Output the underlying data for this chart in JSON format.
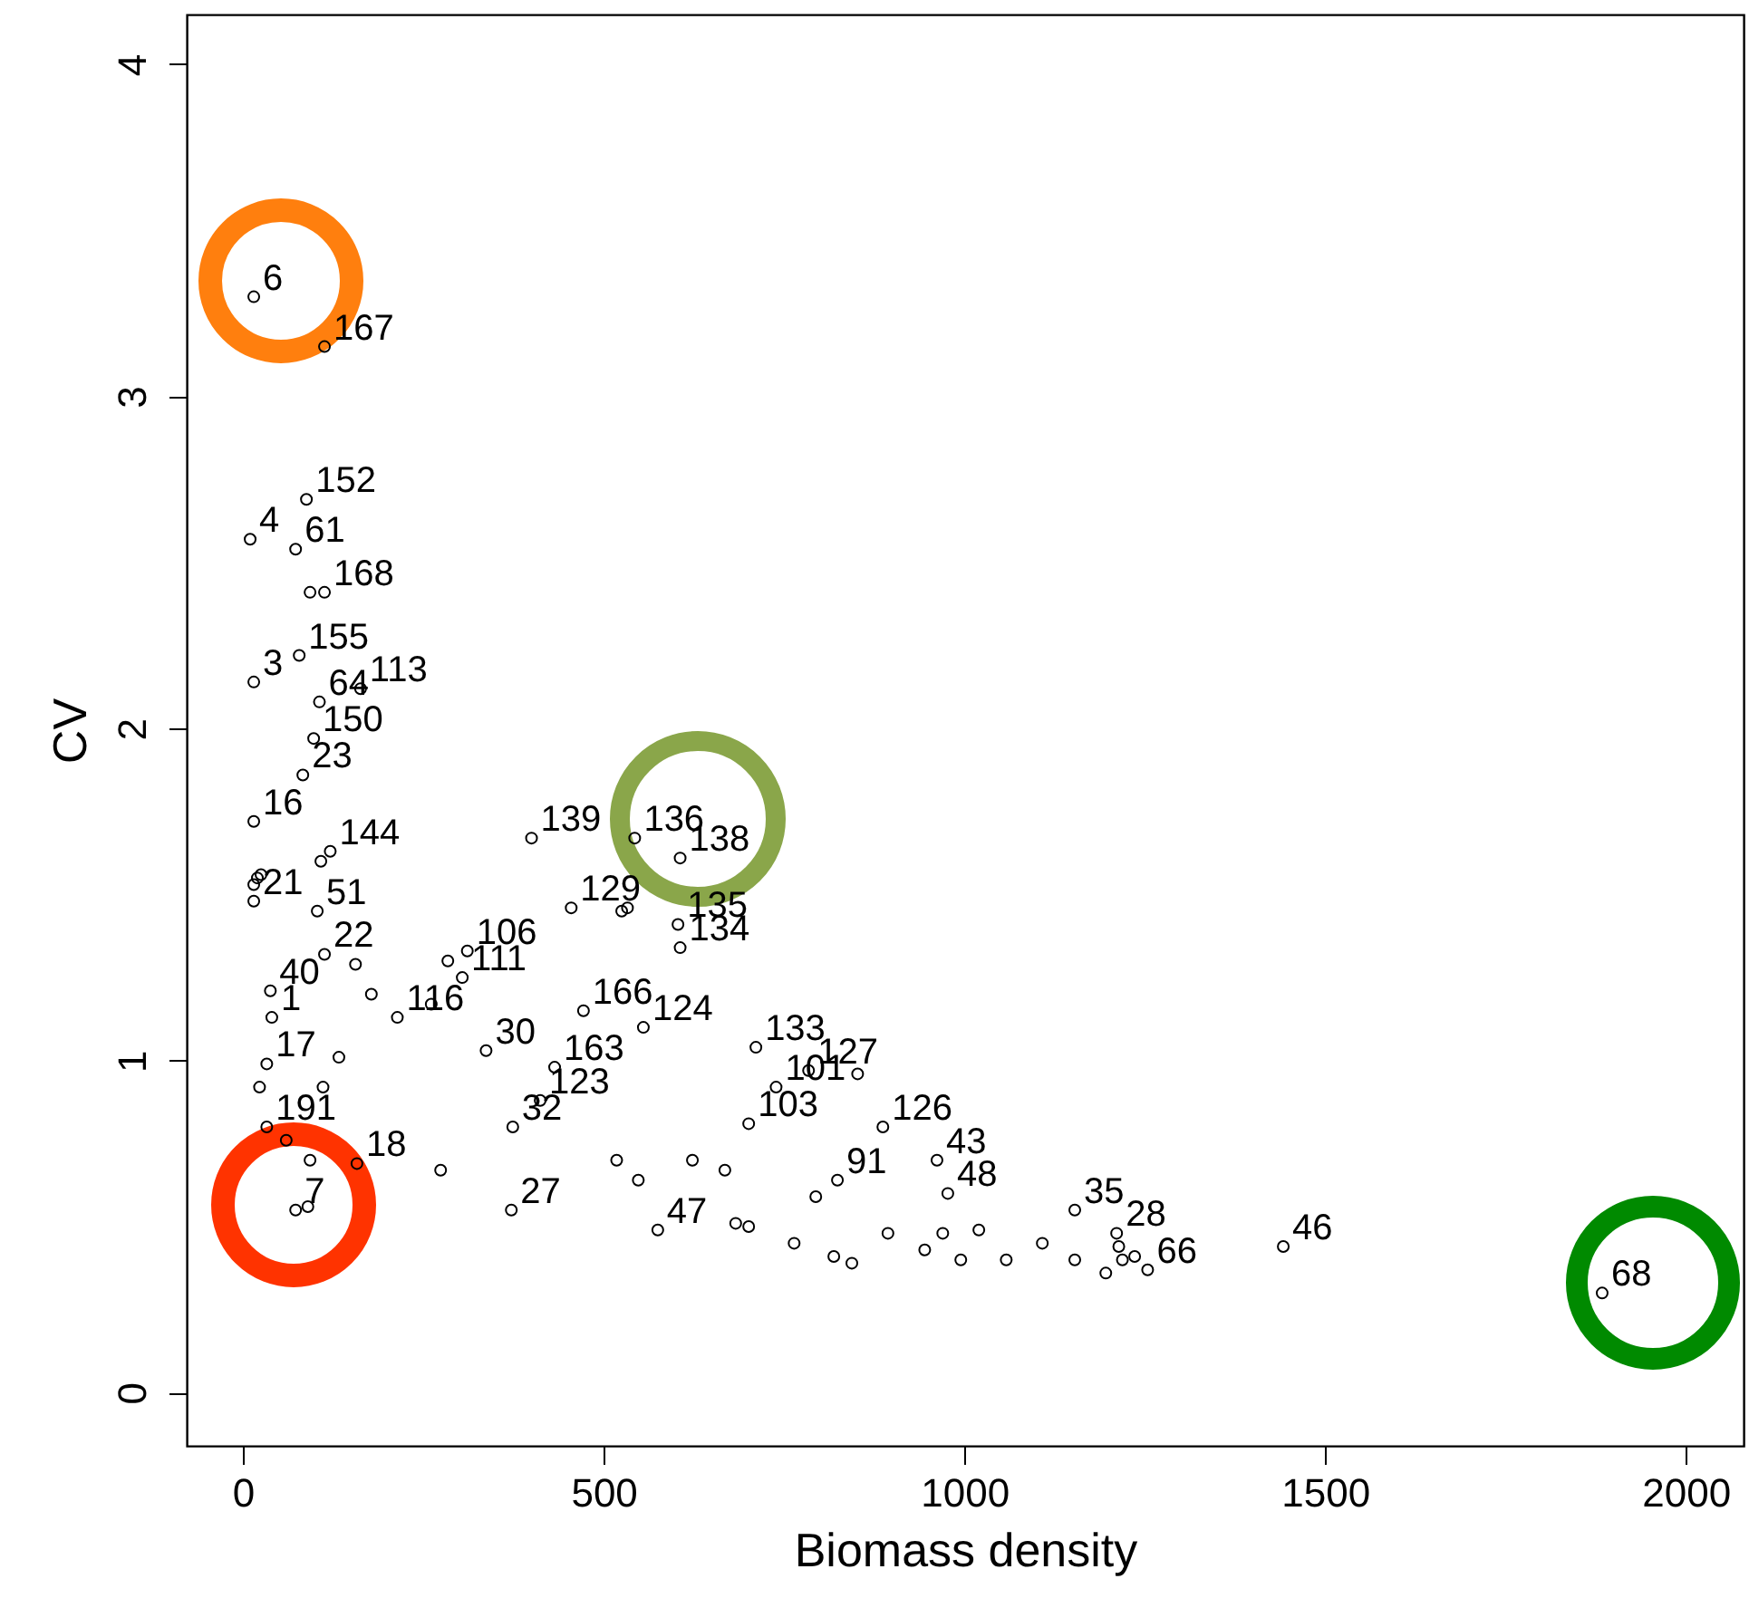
{
  "chart_data": {
    "type": "scatter",
    "xlabel": "Biomass density",
    "ylabel": "CV",
    "xlim": [
      -78,
      2080
    ],
    "ylim": [
      -0.16,
      4.15
    ],
    "xticks": [
      0,
      500,
      1000,
      1500,
      2000
    ],
    "yticks": [
      0,
      1,
      2,
      3,
      4
    ],
    "grid": false,
    "marker": "circle",
    "x": [
      15,
      113,
      88,
      10,
      73,
      93,
      113,
      78,
      15,
      163,
      106,
      98,
      83,
      15,
      108,
      121,
      15,
      20,
      25,
      15,
      103,
      113,
      38,
      40,
      33,
      23,
      33,
      214,
      158,
      60,
      93,
      73,
      90,
      374,
      372,
      400,
      455,
      311,
      304,
      261,
      274,
      543,
      606,
      525,
      533,
      603,
      606,
      575,
      683,
      701,
      764,
      887,
      711,
      852,
      824,
      962,
      977,
      1153,
      1442,
      1254,
      1214,
      1219,
      1236,
      1211,
      1196,
      1153,
      1884,
      472,
      555,
      432,
      412,
      701,
      739,
      784,
      337,
      548,
      518,
      623,
      668,
      794,
      894,
      945,
      995,
      1058,
      1108,
      819,
      844,
      970,
      1020,
      111,
      133,
      178,
      156,
      284
    ],
    "series": [
      {
        "color": "#000000",
        "values": [
          3.3,
          3.15,
          2.69,
          2.57,
          2.54,
          2.41,
          2.41,
          2.22,
          2.14,
          2.12,
          2.08,
          1.97,
          1.86,
          1.72,
          1.6,
          1.63,
          1.53,
          1.55,
          1.56,
          1.48,
          1.45,
          1.32,
          1.21,
          1.13,
          0.99,
          0.92,
          0.8,
          1.13,
          0.69,
          0.76,
          0.7,
          0.55,
          0.56,
          0.8,
          0.55,
          1.67,
          1.46,
          1.33,
          1.25,
          1.17,
          0.67,
          1.67,
          1.61,
          1.45,
          1.46,
          1.41,
          1.34,
          0.49,
          0.51,
          0.5,
          0.45,
          0.8,
          1.04,
          0.96,
          0.64,
          0.7,
          0.6,
          0.55,
          0.44,
          0.37,
          0.44,
          0.4,
          0.41,
          0.48,
          0.36,
          0.4,
          0.3,
          1.15,
          1.1,
          0.98,
          0.88,
          0.81,
          0.92,
          0.97,
          1.03,
          0.64,
          0.7,
          0.7,
          0.67,
          0.59,
          0.48,
          0.43,
          0.4,
          0.4,
          0.45,
          0.41,
          0.39,
          0.48,
          0.49,
          0.92,
          1.01,
          1.2,
          1.29,
          1.3
        ]
      }
    ],
    "annotations": [
      {
        "text": "6",
        "x": 15,
        "y": 3.3
      },
      {
        "text": "167",
        "x": 113,
        "y": 3.15
      },
      {
        "text": "152",
        "x": 88,
        "y": 2.69
      },
      {
        "text": "4",
        "x": 10,
        "y": 2.57
      },
      {
        "text": "61",
        "x": 73,
        "y": 2.54
      },
      {
        "text": "168",
        "x": 113,
        "y": 2.41
      },
      {
        "text": "155",
        "x": 78,
        "y": 2.22
      },
      {
        "text": "3",
        "x": 15,
        "y": 2.14
      },
      {
        "text": "113",
        "x": 163,
        "y": 2.12
      },
      {
        "text": "64",
        "x": 106,
        "y": 2.08
      },
      {
        "text": "150",
        "x": 98,
        "y": 1.97
      },
      {
        "text": "23",
        "x": 83,
        "y": 1.86
      },
      {
        "text": "16",
        "x": 15,
        "y": 1.72
      },
      {
        "text": "144",
        "x": 121,
        "y": 1.63
      },
      {
        "text": "21",
        "x": 15,
        "y": 1.48
      },
      {
        "text": "51",
        "x": 103,
        "y": 1.45
      },
      {
        "text": "22",
        "x": 113,
        "y": 1.32
      },
      {
        "text": "40",
        "x": 38,
        "y": 1.21
      },
      {
        "text": "1",
        "x": 40,
        "y": 1.13
      },
      {
        "text": "17",
        "x": 33,
        "y": 0.99
      },
      {
        "text": "191",
        "x": 33,
        "y": 0.8
      },
      {
        "text": "116",
        "x": 214,
        "y": 1.13
      },
      {
        "text": "18",
        "x": 158,
        "y": 0.69
      },
      {
        "text": "7",
        "x": 73,
        "y": 0.55
      },
      {
        "text": "32",
        "x": 374,
        "y": 0.8
      },
      {
        "text": "27",
        "x": 372,
        "y": 0.55
      },
      {
        "text": "139",
        "x": 400,
        "y": 1.67
      },
      {
        "text": "129",
        "x": 455,
        "y": 1.46
      },
      {
        "text": "106",
        "x": 311,
        "y": 1.33
      },
      {
        "text": "111",
        "x": 304,
        "y": 1.25
      },
      {
        "text": "136",
        "x": 543,
        "y": 1.67
      },
      {
        "text": "138",
        "x": 606,
        "y": 1.61
      },
      {
        "text": "135",
        "x": 603,
        "y": 1.41
      },
      {
        "text": "134",
        "x": 606,
        "y": 1.34
      },
      {
        "text": "47",
        "x": 575,
        "y": 0.49
      },
      {
        "text": "126",
        "x": 887,
        "y": 0.8
      },
      {
        "text": "133",
        "x": 711,
        "y": 1.04
      },
      {
        "text": "91",
        "x": 824,
        "y": 0.64
      },
      {
        "text": "43",
        "x": 962,
        "y": 0.7
      },
      {
        "text": "48",
        "x": 977,
        "y": 0.6
      },
      {
        "text": "35",
        "x": 1153,
        "y": 0.55
      },
      {
        "text": "46",
        "x": 1442,
        "y": 0.44
      },
      {
        "text": "66",
        "x": 1254,
        "y": 0.37
      },
      {
        "text": "28",
        "x": 1211,
        "y": 0.48
      },
      {
        "text": "68",
        "x": 1884,
        "y": 0.3
      },
      {
        "text": "166",
        "x": 472,
        "y": 1.15
      },
      {
        "text": "124",
        "x": 555,
        "y": 1.1
      },
      {
        "text": "163",
        "x": 432,
        "y": 0.98
      },
      {
        "text": "123",
        "x": 412,
        "y": 0.88
      },
      {
        "text": "103",
        "x": 701,
        "y": 0.81
      },
      {
        "text": "101",
        "x": 739,
        "y": 0.92
      },
      {
        "text": "127",
        "x": 784,
        "y": 0.97
      },
      {
        "text": "30",
        "x": 337,
        "y": 1.03
      }
    ]
  }
}
